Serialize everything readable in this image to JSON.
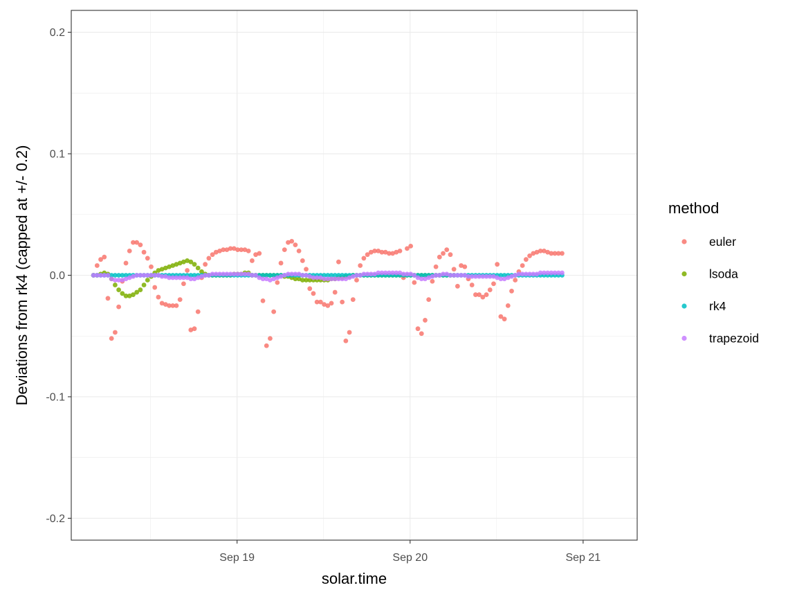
{
  "chart_data": {
    "type": "scatter",
    "title": "",
    "xlabel": "solar.time",
    "ylabel": "Deviations from rk4 (capped at +/- 0.2)",
    "x_unit": "days",
    "x_ticks": [
      {
        "label": "Sep 19",
        "value": "2012-09-19T00:00"
      },
      {
        "label": "Sep 20",
        "value": "2012-09-20T00:00"
      },
      {
        "label": "Sep 21",
        "value": "2012-09-21T00:00"
      }
    ],
    "xlim": [
      "2012-09-18T01:00",
      "2012-09-21T07:30"
    ],
    "x_start": "2012-09-18T04:05",
    "x_step_hours": 0.5,
    "y_ticks": [
      0.2,
      0.1,
      0.0,
      -0.1,
      -0.2
    ],
    "y_tick_labels": [
      "0.2",
      "0.1",
      "0.0",
      "-0.1",
      "-0.2"
    ],
    "ylim": [
      -0.218,
      0.218
    ],
    "grid": true,
    "legend": {
      "title": "method",
      "position": "right"
    },
    "series": [
      {
        "name": "euler",
        "color": "#F8766D",
        "values": [
          0.0,
          0.008,
          0.013,
          0.015,
          -0.019,
          -0.052,
          -0.047,
          -0.026,
          -0.005,
          0.01,
          0.02,
          0.027,
          0.027,
          0.025,
          0.019,
          0.014,
          0.007,
          -0.01,
          -0.018,
          -0.023,
          -0.024,
          -0.025,
          -0.025,
          -0.025,
          -0.02,
          -0.007,
          0.004,
          -0.045,
          -0.044,
          -0.03,
          -0.002,
          0.009,
          0.014,
          0.017,
          0.019,
          0.02,
          0.021,
          0.021,
          0.022,
          0.022,
          0.021,
          0.021,
          0.021,
          0.02,
          0.012,
          0.017,
          0.018,
          -0.021,
          -0.058,
          -0.052,
          -0.03,
          -0.006,
          0.01,
          0.021,
          0.027,
          0.028,
          0.025,
          0.02,
          0.012,
          0.005,
          -0.011,
          -0.015,
          -0.022,
          -0.022,
          -0.024,
          -0.025,
          -0.023,
          -0.014,
          0.011,
          -0.022,
          -0.054,
          -0.047,
          -0.02,
          -0.004,
          0.008,
          0.014,
          0.017,
          0.019,
          0.02,
          0.02,
          0.019,
          0.019,
          0.018,
          0.018,
          0.019,
          0.02,
          -0.002,
          0.022,
          0.024,
          -0.006,
          -0.044,
          -0.048,
          -0.037,
          -0.02,
          -0.005,
          0.007,
          0.015,
          0.018,
          0.021,
          0.017,
          0.005,
          -0.009,
          0.008,
          0.007,
          -0.003,
          -0.008,
          -0.016,
          -0.016,
          -0.018,
          -0.016,
          -0.012,
          -0.007,
          0.009,
          -0.034,
          -0.036,
          -0.025,
          -0.013,
          -0.004,
          0.003,
          0.008,
          0.013,
          0.016,
          0.018,
          0.019,
          0.02,
          0.02,
          0.019,
          0.018,
          0.018,
          0.018,
          0.018
        ]
      },
      {
        "name": "lsoda",
        "color": "#7CAE00",
        "values": [
          0.0,
          0.0,
          0.001,
          0.002,
          0.001,
          -0.003,
          -0.008,
          -0.012,
          -0.015,
          -0.017,
          -0.017,
          -0.016,
          -0.014,
          -0.012,
          -0.008,
          -0.004,
          -0.001,
          0.002,
          0.004,
          0.005,
          0.006,
          0.007,
          0.008,
          0.009,
          0.01,
          0.011,
          0.012,
          0.011,
          0.009,
          0.006,
          0.003,
          0.001,
          0.0,
          0.0,
          0.0,
          0.0,
          0.0,
          0.0,
          0.0,
          0.001,
          0.001,
          0.001,
          0.002,
          0.002,
          0.0,
          0.0,
          0.0,
          0.0,
          0.0,
          0.0,
          0.0,
          0.0,
          0.0,
          -0.001,
          -0.001,
          -0.002,
          -0.003,
          -0.003,
          -0.004,
          -0.004,
          -0.004,
          -0.004,
          -0.004,
          -0.004,
          -0.004,
          -0.004,
          -0.003,
          -0.003,
          -0.002,
          -0.002,
          -0.001,
          -0.001,
          0.0,
          0.0,
          0.0,
          0.0,
          0.0,
          0.0,
          0.0,
          0.0,
          0.0,
          0.0,
          0.0,
          0.0,
          0.0,
          0.0,
          0.0,
          0.0,
          0.0,
          0.0,
          0.0,
          0.0,
          0.0,
          0.0,
          0.0,
          0.0,
          0.0,
          0.0,
          0.0,
          0.0,
          0.0,
          0.0,
          0.0,
          0.0,
          0.0,
          0.0,
          0.0,
          0.0,
          0.0,
          0.0,
          0.0,
          0.0,
          0.0,
          0.0,
          0.0,
          0.0,
          0.0,
          0.0,
          0.0,
          0.0,
          0.0,
          0.0,
          0.0,
          0.0,
          0.0,
          0.0,
          0.0,
          0.0,
          0.0,
          0.0,
          0.0
        ],
        "visible_count": 101
      },
      {
        "name": "rk4",
        "color": "#00BFC4",
        "values": [
          0.0,
          0.0,
          0.0,
          0.0,
          0.0,
          0.0,
          0.0,
          0.0,
          0.0,
          0.0,
          0.0,
          0.0,
          0.0,
          0.0,
          0.0,
          0.0,
          0.0,
          0.0,
          0.0,
          0.0,
          0.0,
          0.0,
          0.0,
          0.0,
          0.0,
          0.0,
          0.0,
          0.0,
          0.0,
          0.0,
          0.0,
          0.0,
          0.0,
          0.0,
          0.0,
          0.0,
          0.0,
          0.0,
          0.0,
          0.0,
          0.0,
          0.0,
          0.0,
          0.0,
          0.0,
          0.0,
          0.0,
          0.0,
          0.0,
          0.0,
          0.0,
          0.0,
          0.0,
          0.0,
          0.0,
          0.0,
          0.0,
          0.0,
          0.0,
          0.0,
          0.0,
          0.0,
          0.0,
          0.0,
          0.0,
          0.0,
          0.0,
          0.0,
          0.0,
          0.0,
          0.0,
          0.0,
          0.0,
          0.0,
          0.0,
          0.0,
          0.0,
          0.0,
          0.0,
          0.0,
          0.0,
          0.0,
          0.0,
          0.0,
          0.0,
          0.0,
          0.0,
          0.0,
          0.0,
          0.0,
          0.0,
          0.0,
          0.0,
          0.0,
          0.0,
          0.0,
          0.0,
          0.0,
          0.0,
          0.0,
          0.0,
          0.0,
          0.0,
          0.0,
          0.0,
          0.0,
          0.0,
          0.0,
          0.0,
          0.0,
          0.0,
          0.0,
          0.0,
          0.0,
          0.0,
          0.0,
          0.0,
          0.0,
          0.0,
          0.0,
          0.0,
          0.0,
          0.0,
          0.0,
          0.0,
          0.0,
          0.0,
          0.0,
          0.0,
          0.0,
          0.0
        ]
      },
      {
        "name": "trapezoid",
        "color": "#C77CFF",
        "values": [
          0.0,
          0.0,
          0.0,
          0.0,
          0.0,
          -0.003,
          -0.004,
          -0.004,
          -0.004,
          -0.003,
          -0.002,
          -0.001,
          0.0,
          0.0,
          0.0,
          0.0,
          0.0,
          0.0,
          0.0,
          -0.001,
          -0.001,
          -0.002,
          -0.002,
          -0.002,
          -0.002,
          -0.002,
          -0.002,
          -0.003,
          -0.003,
          -0.002,
          -0.001,
          0.0,
          0.0,
          0.001,
          0.001,
          0.001,
          0.001,
          0.001,
          0.001,
          0.001,
          0.001,
          0.001,
          0.001,
          0.001,
          0.0,
          0.0,
          -0.002,
          -0.003,
          -0.003,
          -0.004,
          -0.003,
          -0.002,
          -0.001,
          0.0,
          0.001,
          0.001,
          0.001,
          0.001,
          0.0,
          0.0,
          -0.001,
          -0.002,
          -0.002,
          -0.002,
          -0.003,
          -0.003,
          -0.003,
          -0.003,
          -0.003,
          -0.003,
          -0.003,
          -0.002,
          -0.001,
          0.0,
          0.0,
          0.001,
          0.001,
          0.001,
          0.001,
          0.002,
          0.002,
          0.002,
          0.002,
          0.002,
          0.002,
          0.002,
          0.001,
          0.001,
          0.001,
          0.0,
          -0.002,
          -0.003,
          -0.003,
          -0.002,
          -0.001,
          0.0,
          0.0,
          0.001,
          0.001,
          0.0,
          0.0,
          0.0,
          0.0,
          0.0,
          -0.001,
          -0.001,
          -0.001,
          -0.001,
          -0.001,
          -0.001,
          -0.001,
          -0.001,
          -0.002,
          -0.003,
          -0.003,
          -0.002,
          -0.001,
          0.0,
          0.001,
          0.001,
          0.001,
          0.001,
          0.001,
          0.001,
          0.002,
          0.002,
          0.002,
          0.002,
          0.002,
          0.002,
          0.002
        ]
      }
    ]
  }
}
